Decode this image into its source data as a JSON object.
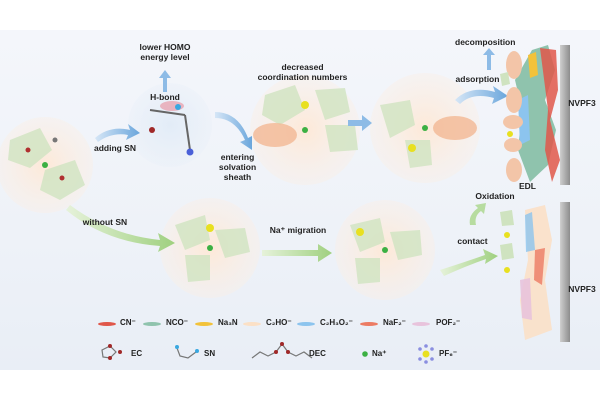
{
  "labels": {
    "lower_homo": "lower HOMO energy level",
    "h_bond": "H-bond",
    "adding_sn": "adding SN",
    "entering": "entering solvation sheath",
    "decreased": "decreased coordination numbers",
    "decomposition": "decomposition",
    "adsorption": "adsorption",
    "nvpf_top": "NVPF3",
    "edl": "EDL",
    "oxidation": "Oxidation",
    "contact": "contact",
    "nvpf_bottom": "NVPF3",
    "without_sn": "without SN",
    "na_migration": "Na⁺ migration"
  },
  "legend_species": [
    {
      "label": "CN⁻",
      "color": "#e0574a"
    },
    {
      "label": "NCO⁻",
      "color": "#8fc3ad"
    },
    {
      "label": "Na₃N",
      "color": "#f2c23a"
    },
    {
      "label": "C₂HO⁻",
      "color": "#fbe0c6"
    },
    {
      "label": "C₂H₃O₂⁻",
      "color": "#8cc4ee"
    },
    {
      "label": "NaF₂⁻",
      "color": "#ec7b63"
    },
    {
      "label": "POF₂⁻",
      "color": "#e8c3dc"
    }
  ],
  "legend_molecules": [
    {
      "label": "EC",
      "icon": "ec-molecule-icon"
    },
    {
      "label": "SN",
      "icon": "sn-molecule-icon"
    },
    {
      "label": "DEC",
      "icon": "dec-molecule-icon"
    },
    {
      "label": "Na⁺",
      "icon": "sodium-ion-icon",
      "color": "#3cb043"
    },
    {
      "label": "PF₆⁻",
      "icon": "pf6-anion-icon",
      "color": "#e8e020"
    }
  ]
}
